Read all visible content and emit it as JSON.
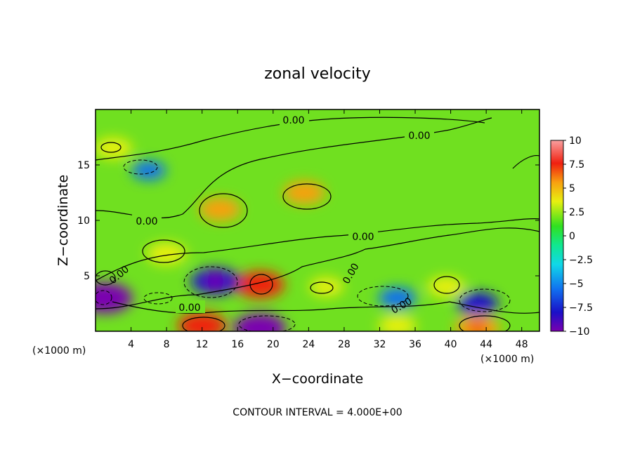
{
  "chart_data": {
    "type": "heatmap",
    "title": "zonal velocity",
    "xlabel": "X−coordinate",
    "ylabel": "Z−coordinate",
    "x_unit_label": "(×1000 m)",
    "x_unit_label_left": "(×1000 m)",
    "xlim": [
      0,
      50
    ],
    "ylim": [
      0,
      20
    ],
    "x_ticks": [
      4,
      8,
      12,
      16,
      20,
      24,
      28,
      32,
      36,
      40,
      44,
      48
    ],
    "y_ticks": [
      5,
      10,
      15
    ],
    "colorbar": {
      "ticks": [
        10,
        7.5,
        5,
        2.5,
        0,
        -2.5,
        -5,
        -7.5,
        -10
      ],
      "tick_labels": [
        "10",
        "7.5",
        "5",
        "2.5",
        "0",
        "−2.5",
        "−5",
        "−7.5",
        "−10"
      ],
      "vmin": -10,
      "vmax": 10
    },
    "contour_interval_text": "CONTOUR INTERVAL = 4.000E+00",
    "contour_labels": [
      "0.00",
      "0.00",
      "0.00",
      "0.00",
      "0.00",
      "0.00",
      "0.00",
      "0.00"
    ],
    "features": [
      {
        "x": 14,
        "z": 11,
        "value": 6
      },
      {
        "x": 23.5,
        "z": 12.5,
        "value": 6
      },
      {
        "x": 8,
        "z": 7,
        "value": 5.5
      },
      {
        "x": 18.5,
        "z": 4.2,
        "value": 8
      },
      {
        "x": 13.5,
        "z": 4.5,
        "value": -8
      },
      {
        "x": 1,
        "z": 3,
        "value": -10
      },
      {
        "x": 6,
        "z": 14.5,
        "value": -4
      },
      {
        "x": 34,
        "z": 3,
        "value": -5
      },
      {
        "x": 43,
        "z": 2.5,
        "value": -6
      },
      {
        "x": 39.5,
        "z": 4,
        "value": 5
      },
      {
        "x": 12,
        "z": 0.5,
        "value": 8
      },
      {
        "x": 43,
        "z": 0.3,
        "value": 7
      },
      {
        "x": 34,
        "z": 0.5,
        "value": 5
      },
      {
        "x": 18.5,
        "z": 0.3,
        "value": -9
      },
      {
        "x": 26,
        "z": 4,
        "value": 4
      },
      {
        "x": 2,
        "z": 16.5,
        "value": 5
      }
    ]
  }
}
